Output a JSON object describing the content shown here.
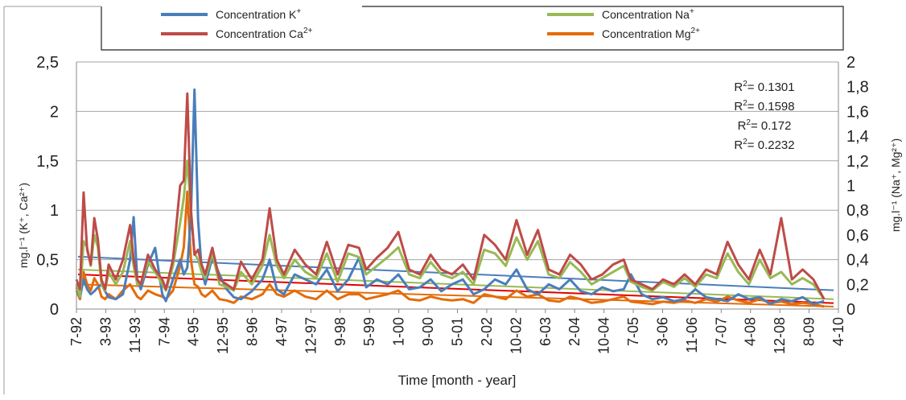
{
  "chart_data": {
    "type": "line",
    "xlabel": "Time [month - year]",
    "ylabel_left": "mg.l⁻¹ (K⁺, Ca²⁺)",
    "ylabel_right": "mg.l⁻¹ (Na⁺, Mg²⁺)",
    "ylim_left": [
      0,
      2.5
    ],
    "ylim_right": [
      0,
      2
    ],
    "yticks_left": [
      "0",
      "0,5",
      "1",
      "1,5",
      "2",
      "2,5"
    ],
    "yticks_right": [
      "0",
      "0,2",
      "0,4",
      "0,6",
      "0,8",
      "1",
      "1,2",
      "1,4",
      "1,6",
      "1,8",
      "2"
    ],
    "grid": true,
    "legend_position": "top",
    "x_ticks": [
      "7-92",
      "3-93",
      "11-93",
      "7-94",
      "4-95",
      "12-95",
      "8-96",
      "4-97",
      "12-97",
      "9-98",
      "5-99",
      "1-00",
      "9-00",
      "5-01",
      "2-02",
      "10-02",
      "6-03",
      "2-04",
      "10-04",
      "7-05",
      "3-06",
      "11-06",
      "7-07",
      "4-08",
      "12-08",
      "8-09",
      "4-10"
    ],
    "x_start": "1992-07",
    "x_end": "2010-04",
    "series": [
      {
        "name": "Concentration K⁺",
        "label_main": "Concentration K",
        "label_sup": "+",
        "axis": "left",
        "color": "#4a7ebb",
        "x": [
          "1992-07",
          "1992-08",
          "1992-09",
          "1992-10",
          "1992-11",
          "1992-12",
          "1993-01",
          "1993-02",
          "1993-03",
          "1993-04",
          "1993-06",
          "1993-08",
          "1993-10",
          "1993-11",
          "1993-12",
          "1994-01",
          "1994-03",
          "1994-05",
          "1994-07",
          "1994-08",
          "1994-10",
          "1994-12",
          "1995-01",
          "1995-02",
          "1995-03",
          "1995-04",
          "1995-05",
          "1995-06",
          "1995-07",
          "1995-09",
          "1995-11",
          "1996-01",
          "1996-03",
          "1996-05",
          "1996-08",
          "1996-11",
          "1997-01",
          "1997-03",
          "1997-05",
          "1997-08",
          "1997-11",
          "1998-02",
          "1998-05",
          "1998-08",
          "1998-11",
          "1999-02",
          "1999-04",
          "1999-07",
          "1999-10",
          "2000-01",
          "2000-04",
          "2000-07",
          "2000-10",
          "2001-01",
          "2001-04",
          "2001-07",
          "2001-10",
          "2002-01",
          "2002-04",
          "2002-07",
          "2002-10",
          "2003-01",
          "2003-04",
          "2003-07",
          "2003-10",
          "2004-01",
          "2004-04",
          "2004-07",
          "2004-10",
          "2005-01",
          "2005-04",
          "2005-06",
          "2005-09",
          "2005-12",
          "2006-03",
          "2006-06",
          "2006-09",
          "2006-12",
          "2007-03",
          "2007-06",
          "2007-09",
          "2007-12",
          "2008-03",
          "2008-06",
          "2008-09",
          "2008-12",
          "2009-03",
          "2009-06",
          "2009-09",
          "2009-12"
        ],
        "values": [
          0.22,
          0.12,
          0.3,
          0.2,
          0.15,
          0.18,
          0.22,
          0.25,
          0.18,
          0.12,
          0.1,
          0.15,
          0.5,
          0.93,
          0.3,
          0.2,
          0.45,
          0.62,
          0.15,
          0.08,
          0.3,
          0.5,
          0.35,
          0.42,
          0.95,
          2.22,
          0.9,
          0.4,
          0.25,
          0.52,
          0.35,
          0.2,
          0.12,
          0.1,
          0.18,
          0.3,
          0.5,
          0.2,
          0.15,
          0.35,
          0.3,
          0.25,
          0.4,
          0.18,
          0.3,
          0.52,
          0.22,
          0.3,
          0.25,
          0.35,
          0.2,
          0.22,
          0.3,
          0.18,
          0.25,
          0.3,
          0.15,
          0.2,
          0.3,
          0.25,
          0.4,
          0.2,
          0.15,
          0.25,
          0.2,
          0.3,
          0.18,
          0.15,
          0.22,
          0.18,
          0.2,
          0.35,
          0.15,
          0.1,
          0.12,
          0.08,
          0.1,
          0.2,
          0.12,
          0.1,
          0.08,
          0.15,
          0.1,
          0.12,
          0.05,
          0.1,
          0.08,
          0.12,
          0.05,
          0.08
        ],
        "trend": [
          0.53,
          0.19
        ],
        "r2": "R²= 0.1301",
        "r2_main": "R",
        "r2_sup": "2",
        "r2_rest": "= 0.1301"
      },
      {
        "name": "Concentration Ca²⁺",
        "label_main": "Concentration Ca",
        "label_sup": "2+",
        "axis": "left",
        "color": "#be4b48",
        "x": [
          "1992-07",
          "1992-08",
          "1992-09",
          "1992-10",
          "1992-11",
          "1992-12",
          "1993-01",
          "1993-02",
          "1993-03",
          "1993-04",
          "1993-06",
          "1993-08",
          "1993-10",
          "1993-11",
          "1993-12",
          "1994-01",
          "1994-03",
          "1994-05",
          "1994-07",
          "1994-08",
          "1994-10",
          "1994-12",
          "1995-01",
          "1995-02",
          "1995-03",
          "1995-04",
          "1995-05",
          "1995-06",
          "1995-07",
          "1995-09",
          "1995-11",
          "1996-01",
          "1996-03",
          "1996-05",
          "1996-08",
          "1996-11",
          "1997-01",
          "1997-03",
          "1997-05",
          "1997-08",
          "1997-11",
          "1998-02",
          "1998-05",
          "1998-08",
          "1998-11",
          "1999-02",
          "1999-04",
          "1999-07",
          "1999-10",
          "2000-01",
          "2000-04",
          "2000-07",
          "2000-10",
          "2001-01",
          "2001-04",
          "2001-07",
          "2001-10",
          "2002-01",
          "2002-04",
          "2002-07",
          "2002-10",
          "2003-01",
          "2003-04",
          "2003-07",
          "2003-10",
          "2004-01",
          "2004-04",
          "2004-07",
          "2004-10",
          "2005-01",
          "2005-04",
          "2005-06",
          "2005-09",
          "2005-12",
          "2006-03",
          "2006-06",
          "2006-09",
          "2006-12",
          "2007-03",
          "2007-06",
          "2007-09",
          "2007-12",
          "2008-03",
          "2008-06",
          "2008-09",
          "2008-12",
          "2009-03",
          "2009-06",
          "2009-09",
          "2009-12"
        ],
        "values": [
          0.3,
          0.2,
          1.18,
          0.6,
          0.45,
          0.92,
          0.7,
          0.3,
          0.2,
          0.45,
          0.3,
          0.5,
          0.85,
          0.5,
          0.3,
          0.25,
          0.55,
          0.4,
          0.3,
          0.2,
          0.5,
          1.25,
          1.3,
          2.18,
          1.0,
          0.55,
          0.6,
          0.45,
          0.35,
          0.62,
          0.3,
          0.25,
          0.2,
          0.48,
          0.3,
          0.5,
          1.02,
          0.5,
          0.35,
          0.6,
          0.45,
          0.35,
          0.68,
          0.35,
          0.65,
          0.62,
          0.4,
          0.52,
          0.62,
          0.78,
          0.4,
          0.35,
          0.55,
          0.4,
          0.35,
          0.45,
          0.3,
          0.75,
          0.65,
          0.5,
          0.9,
          0.55,
          0.8,
          0.4,
          0.35,
          0.55,
          0.45,
          0.3,
          0.35,
          0.45,
          0.5,
          0.3,
          0.25,
          0.2,
          0.3,
          0.25,
          0.35,
          0.25,
          0.4,
          0.35,
          0.68,
          0.45,
          0.3,
          0.6,
          0.35,
          0.92,
          0.3,
          0.4,
          0.3,
          0.1
        ],
        "trend": [
          0.35,
          0.06
        ],
        "r2": "R²= 0.1598",
        "r2_main": "R",
        "r2_sup": "2",
        "r2_rest": "= 0.1598"
      },
      {
        "name": "Concentration Na⁺",
        "label_main": "Concentration Na",
        "label_sup": "+",
        "axis": "right",
        "color": "#98b954",
        "x": [
          "1992-07",
          "1992-08",
          "1992-09",
          "1992-10",
          "1992-11",
          "1992-12",
          "1993-01",
          "1993-02",
          "1993-03",
          "1993-04",
          "1993-06",
          "1993-08",
          "1993-10",
          "1993-11",
          "1993-12",
          "1994-01",
          "1994-03",
          "1994-05",
          "1994-07",
          "1994-08",
          "1994-10",
          "1994-12",
          "1995-01",
          "1995-02",
          "1995-03",
          "1995-04",
          "1995-05",
          "1995-06",
          "1995-07",
          "1995-09",
          "1995-11",
          "1996-01",
          "1996-03",
          "1996-05",
          "1996-08",
          "1996-11",
          "1997-01",
          "1997-03",
          "1997-05",
          "1997-08",
          "1997-11",
          "1998-02",
          "1998-05",
          "1998-08",
          "1998-11",
          "1999-02",
          "1999-04",
          "1999-07",
          "1999-10",
          "2000-01",
          "2000-04",
          "2000-07",
          "2000-10",
          "2001-01",
          "2001-04",
          "2001-07",
          "2001-10",
          "2002-01",
          "2002-04",
          "2002-07",
          "2002-10",
          "2003-01",
          "2003-04",
          "2003-07",
          "2003-10",
          "2004-01",
          "2004-04",
          "2004-07",
          "2004-10",
          "2005-01",
          "2005-04",
          "2005-06",
          "2005-09",
          "2005-12",
          "2006-03",
          "2006-06",
          "2006-09",
          "2006-12",
          "2007-03",
          "2007-06",
          "2007-09",
          "2007-12",
          "2008-03",
          "2008-06",
          "2008-09",
          "2008-12",
          "2009-03",
          "2009-06",
          "2009-09",
          "2009-12"
        ],
        "values": [
          0.2,
          0.1,
          0.55,
          0.5,
          0.35,
          0.6,
          0.5,
          0.2,
          0.15,
          0.3,
          0.2,
          0.3,
          0.55,
          0.35,
          0.2,
          0.2,
          0.38,
          0.3,
          0.2,
          0.15,
          0.35,
          0.7,
          0.9,
          1.2,
          0.8,
          0.45,
          0.4,
          0.3,
          0.25,
          0.45,
          0.2,
          0.18,
          0.15,
          0.3,
          0.2,
          0.35,
          0.6,
          0.35,
          0.25,
          0.4,
          0.3,
          0.25,
          0.45,
          0.22,
          0.45,
          0.42,
          0.28,
          0.35,
          0.42,
          0.5,
          0.28,
          0.25,
          0.38,
          0.28,
          0.25,
          0.3,
          0.2,
          0.48,
          0.45,
          0.35,
          0.58,
          0.4,
          0.55,
          0.28,
          0.25,
          0.38,
          0.3,
          0.2,
          0.25,
          0.3,
          0.35,
          0.22,
          0.18,
          0.15,
          0.22,
          0.18,
          0.25,
          0.18,
          0.28,
          0.25,
          0.45,
          0.3,
          0.2,
          0.4,
          0.25,
          0.3,
          0.2,
          0.25,
          0.2,
          0.08
        ],
        "trend": [
          0.32,
          0.08
        ],
        "r2": "R²= 0.172",
        "r2_main": "R",
        "r2_sup": "2",
        "r2_rest": "= 0.172"
      },
      {
        "name": "Concentration Mg²⁺",
        "label_main": "Concentration Mg",
        "label_sup": "2+",
        "axis": "right",
        "color": "#e46c0a",
        "x": [
          "1992-07",
          "1992-08",
          "1992-09",
          "1992-10",
          "1992-11",
          "1992-12",
          "1993-01",
          "1993-02",
          "1993-03",
          "1993-04",
          "1993-06",
          "1993-08",
          "1993-10",
          "1993-11",
          "1993-12",
          "1994-01",
          "1994-03",
          "1994-05",
          "1994-07",
          "1994-08",
          "1994-10",
          "1994-12",
          "1995-01",
          "1995-02",
          "1995-03",
          "1995-04",
          "1995-05",
          "1995-06",
          "1995-07",
          "1995-09",
          "1995-11",
          "1996-01",
          "1996-03",
          "1996-05",
          "1996-08",
          "1996-11",
          "1997-01",
          "1997-03",
          "1997-05",
          "1997-08",
          "1997-11",
          "1998-02",
          "1998-05",
          "1998-08",
          "1998-11",
          "1999-02",
          "1999-04",
          "1999-07",
          "1999-10",
          "2000-01",
          "2000-04",
          "2000-07",
          "2000-10",
          "2001-01",
          "2001-04",
          "2001-07",
          "2001-10",
          "2002-01",
          "2002-04",
          "2002-07",
          "2002-10",
          "2003-01",
          "2003-04",
          "2003-07",
          "2003-10",
          "2004-01",
          "2004-04",
          "2004-07",
          "2004-10",
          "2005-01",
          "2005-04",
          "2005-06",
          "2005-09",
          "2005-12",
          "2006-03",
          "2006-06",
          "2006-09",
          "2006-12",
          "2007-03",
          "2007-06",
          "2007-09",
          "2007-12",
          "2008-03",
          "2008-06",
          "2008-09",
          "2008-12",
          "2009-03",
          "2009-06",
          "2009-09",
          "2009-12"
        ],
        "values": [
          0.15,
          0.08,
          0.3,
          0.2,
          0.15,
          0.25,
          0.2,
          0.1,
          0.08,
          0.12,
          0.08,
          0.15,
          0.2,
          0.15,
          0.1,
          0.08,
          0.15,
          0.12,
          0.1,
          0.08,
          0.15,
          0.35,
          0.5,
          0.95,
          0.4,
          0.2,
          0.18,
          0.12,
          0.1,
          0.15,
          0.08,
          0.07,
          0.05,
          0.1,
          0.08,
          0.12,
          0.2,
          0.12,
          0.1,
          0.15,
          0.1,
          0.08,
          0.15,
          0.08,
          0.12,
          0.12,
          0.08,
          0.1,
          0.12,
          0.15,
          0.08,
          0.07,
          0.1,
          0.08,
          0.07,
          0.08,
          0.05,
          0.12,
          0.1,
          0.08,
          0.15,
          0.1,
          0.12,
          0.07,
          0.06,
          0.1,
          0.08,
          0.05,
          0.06,
          0.08,
          0.1,
          0.06,
          0.05,
          0.04,
          0.06,
          0.05,
          0.07,
          0.05,
          0.08,
          0.06,
          0.1,
          0.07,
          0.05,
          0.08,
          0.05,
          0.06,
          0.04,
          0.05,
          0.04,
          0.02
        ],
        "trend": [
          0.2,
          0.02
        ],
        "r2": "R²= 0.2232",
        "r2_main": "R",
        "r2_sup": "2",
        "r2_rest": "= 0.2232"
      }
    ]
  }
}
